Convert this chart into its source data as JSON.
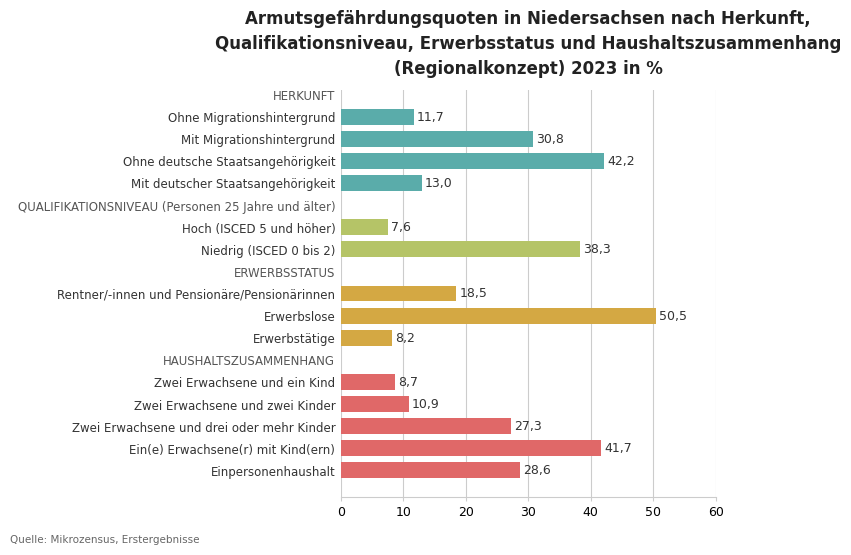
{
  "title": "Armutsgefährdungsquoten in Niedersachsen nach Herkunft,\nQualifikationsniveau, Erwerbsstatus und Haushaltszusammenhang\n(Regionalkonzept) 2023 in %",
  "source": "Quelle: Mikrozensus, Erstergebnisse",
  "xlim": [
    0,
    60
  ],
  "xticks": [
    0,
    10,
    20,
    30,
    40,
    50,
    60
  ],
  "categories": [
    "HERKUNFT",
    "Ohne Migrationshintergrund",
    "Mit Migrationshintergrund",
    "Ohne deutsche Staatsangehörigkeit",
    "Mit deutscher Staatsangehörigkeit",
    "QUALIFIKATIONSNIVEAU (Personen 25 Jahre und älter)",
    "Hoch (ISCED 5 und höher)",
    "Niedrig (ISCED 0 bis 2)",
    "ERWERBSSTATUS",
    "Rentner/-innen und Pensionäre/Pensionärinnen",
    "Erwerbslose",
    "Erwerbstätige",
    "HAUSHALTSZUSAMMENHANG",
    "Zwei Erwachsene und ein Kind",
    "Zwei Erwachsene und zwei Kinder",
    "Zwei Erwachsene und drei oder mehr Kinder",
    "Ein(e) Erwachsene(r) mit Kind(ern)",
    "Einpersonenhaushalt"
  ],
  "values": [
    null,
    11.7,
    30.8,
    42.2,
    13.0,
    null,
    7.6,
    38.3,
    null,
    18.5,
    50.5,
    8.2,
    null,
    8.7,
    10.9,
    27.3,
    41.7,
    28.6
  ],
  "value_labels": [
    "",
    "11,7",
    "30,8",
    "42,2",
    "13,0",
    "",
    "7,6",
    "38,3",
    "",
    "18,5",
    "50,5",
    "8,2",
    "",
    "8,7",
    "10,9",
    "27,3",
    "41,7",
    "28,6"
  ],
  "bar_colors": [
    null,
    "#5aacaa",
    "#5aacaa",
    "#5aacaa",
    "#5aacaa",
    null,
    "#b5c467",
    "#b5c467",
    null,
    "#d4a843",
    "#d4a843",
    "#d4a843",
    null,
    "#e06868",
    "#e06868",
    "#e06868",
    "#e06868",
    "#e06868"
  ],
  "header_indices": [
    0,
    5,
    8,
    12
  ],
  "background_color": "#ffffff",
  "grid_color": "#cccccc",
  "bar_height": 0.72,
  "value_fontsize": 9,
  "label_fontsize": 8.5,
  "header_fontsize": 8.5,
  "title_fontsize": 12
}
